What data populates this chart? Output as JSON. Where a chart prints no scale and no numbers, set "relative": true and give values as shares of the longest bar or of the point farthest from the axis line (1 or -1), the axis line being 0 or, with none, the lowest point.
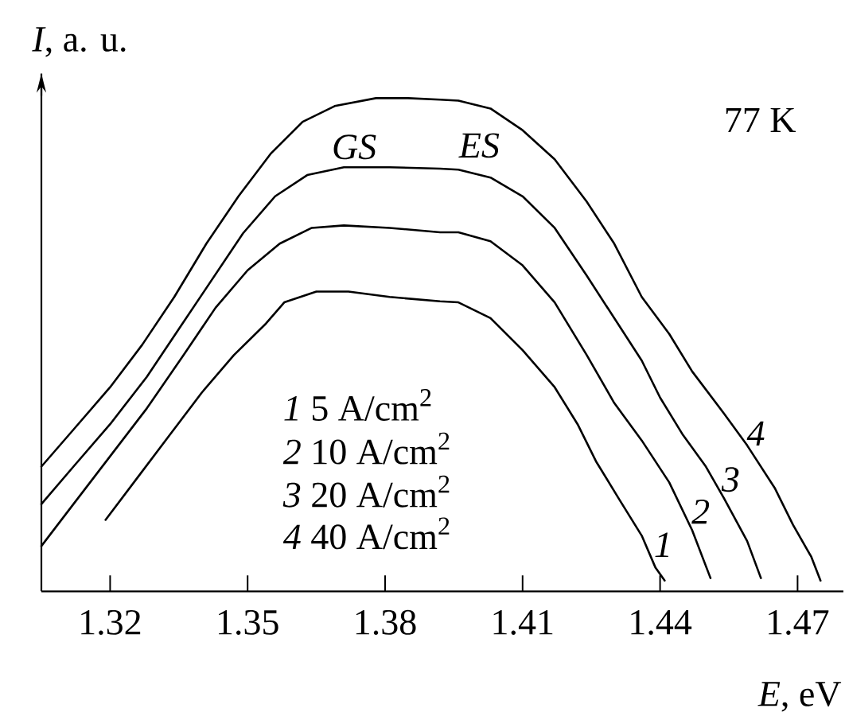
{
  "chart_data": {
    "type": "line",
    "xlabel": "*E*, eV",
    "ylabel": "*I*, a. u.",
    "relative": true,
    "xlim": [
      1.305,
      1.48
    ],
    "xticks": [
      1.32,
      1.35,
      1.38,
      1.41,
      1.44,
      1.47
    ],
    "tick_labels": "x",
    "annotations": [
      "GS",
      "ES",
      "77 K",
      "*1* 5 A/cm$^{2}$",
      "*2* 10 A/cm$^{2}$",
      "*3* 20 A/cm$^{2}$",
      "*4* 40 A/cm$^{2}$"
    ],
    "series": [
      {
        "name": "1",
        "color": "#000000",
        "x": [
          1.319,
          1.326,
          1.333,
          1.34,
          1.347,
          1.354,
          1.358,
          1.365,
          1.372,
          1.381,
          1.392,
          1.396,
          1.403,
          1.41,
          1.417,
          1.422,
          1.426,
          1.431,
          1.436,
          1.439,
          1.441
        ],
        "values": [
          0.145,
          0.231,
          0.317,
          0.403,
          0.479,
          0.543,
          0.586,
          0.608,
          0.608,
          0.597,
          0.588,
          0.586,
          0.554,
          0.489,
          0.414,
          0.339,
          0.264,
          0.188,
          0.113,
          0.048,
          0.022
        ]
      },
      {
        "name": "2",
        "color": "#000000",
        "x": [
          1.305,
          1.312,
          1.32,
          1.328,
          1.336,
          1.343,
          1.35,
          1.357,
          1.364,
          1.371,
          1.381,
          1.392,
          1.396,
          1.403,
          1.41,
          1.417,
          1.424,
          1.43,
          1.436,
          1.442,
          1.447,
          1.451
        ],
        "values": [
          0.092,
          0.177,
          0.274,
          0.371,
          0.479,
          0.575,
          0.651,
          0.705,
          0.737,
          0.742,
          0.737,
          0.728,
          0.728,
          0.71,
          0.661,
          0.586,
          0.479,
          0.382,
          0.306,
          0.221,
          0.124,
          0.027
        ]
      },
      {
        "name": "3",
        "color": "#000000",
        "x": [
          1.305,
          1.312,
          1.32,
          1.328,
          1.335,
          1.342,
          1.349,
          1.356,
          1.363,
          1.371,
          1.381,
          1.392,
          1.396,
          1.403,
          1.41,
          1.417,
          1.424,
          1.43,
          1.436,
          1.44,
          1.445,
          1.45,
          1.454,
          1.459,
          1.462
        ],
        "values": [
          0.177,
          0.253,
          0.339,
          0.435,
          0.532,
          0.629,
          0.726,
          0.801,
          0.844,
          0.86,
          0.86,
          0.857,
          0.855,
          0.839,
          0.801,
          0.737,
          0.64,
          0.554,
          0.468,
          0.393,
          0.317,
          0.253,
          0.188,
          0.102,
          0.027
        ]
      },
      {
        "name": "4",
        "color": "#000000",
        "x": [
          1.305,
          1.312,
          1.32,
          1.327,
          1.334,
          1.341,
          1.348,
          1.355,
          1.362,
          1.369,
          1.378,
          1.385,
          1.392,
          1.396,
          1.403,
          1.41,
          1.417,
          1.424,
          1.43,
          1.436,
          1.442,
          1.447,
          1.454,
          1.459,
          1.465,
          1.469,
          1.473,
          1.475
        ],
        "values": [
          0.253,
          0.328,
          0.414,
          0.5,
          0.597,
          0.705,
          0.801,
          0.887,
          0.952,
          0.984,
          1.0,
          1.0,
          0.997,
          0.995,
          0.979,
          0.935,
          0.876,
          0.79,
          0.705,
          0.597,
          0.522,
          0.446,
          0.36,
          0.296,
          0.21,
          0.135,
          0.07,
          0.022
        ]
      }
    ]
  }
}
